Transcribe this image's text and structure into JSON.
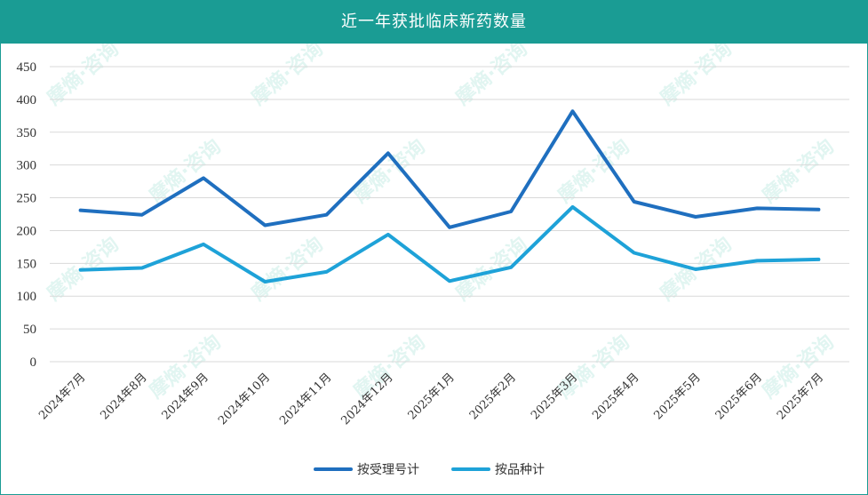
{
  "header": {
    "title": "近一年获批临床新药数量"
  },
  "watermark_text": "摩熵·咨询",
  "chart_data": {
    "type": "line",
    "categories": [
      "2024年7月",
      "2024年8月",
      "2024年9月",
      "2024年10月",
      "2024年11月",
      "2024年12月",
      "2025年1月",
      "2025年2月",
      "2025年3月",
      "2025年4月",
      "2025年5月",
      "2025年6月",
      "2025年7月"
    ],
    "series": [
      {
        "name": "按受理号计",
        "color": "#1f6fbf",
        "values": [
          231,
          224,
          280,
          208,
          224,
          318,
          205,
          229,
          382,
          244,
          221,
          234,
          232
        ]
      },
      {
        "name": "按品种计",
        "color": "#1ea2d8",
        "values": [
          140,
          143,
          179,
          122,
          137,
          194,
          123,
          144,
          236,
          166,
          141,
          154,
          156
        ]
      }
    ],
    "yticks": [
      0,
      50,
      100,
      150,
      200,
      250,
      300,
      350,
      400,
      450
    ],
    "ylim": [
      0,
      450
    ],
    "grid": true,
    "legend_position": "bottom"
  }
}
